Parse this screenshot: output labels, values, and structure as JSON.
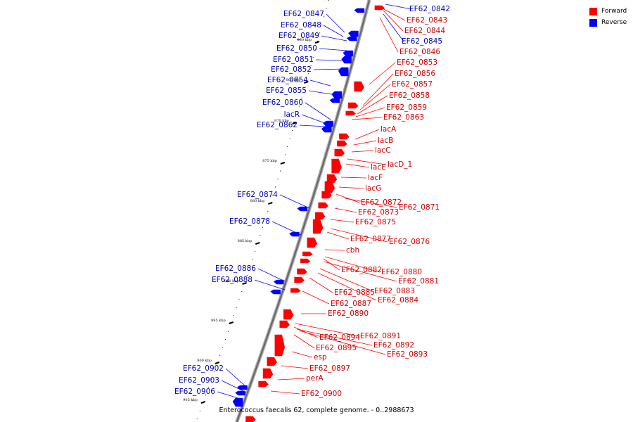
{
  "caption": "Enterococcus faecalis 62, complete genome. - 0..2988673",
  "legend": [
    {
      "label": "Forward",
      "color": "#ff0000"
    },
    {
      "label": "Reverse",
      "color": "#0000ff"
    }
  ],
  "colors": {
    "forward": "#ff0000",
    "reverse": "#0000ff",
    "backbone": "#888888"
  },
  "ticks": [
    "860 kbp",
    "865 kbp",
    "870 kbp",
    "875 kbp",
    "880 kbp",
    "885 kbp",
    "890 kbp",
    "895 kbp",
    "900 kbp",
    "905 kbp"
  ],
  "forward_labels": [
    "EF62_0843",
    "EF62_0844",
    "EF62_0846",
    "EF62_0853",
    "EF62_0856",
    "EF62_0857",
    "EF62_0858",
    "EF62_0859",
    "EF62_0863",
    "lacA",
    "lacB",
    "lacC",
    "lacD_1",
    "lacE",
    "lacF",
    "lacG",
    "EF62_0872",
    "EF62_0871",
    "EF62_0873",
    "EF62_0875",
    "EF62_0877",
    "EF62_0876",
    "cbh",
    "EF62_0882",
    "EF62_0880",
    "EF62_0881",
    "EF62_0883",
    "EF62_0885",
    "EF62_0884",
    "EF62_0887",
    "EF62_0890",
    "EF62_0891",
    "EF62_0894",
    "EF62_0892",
    "EF62_0895",
    "EF62_0893",
    "esp",
    "EF62_0897",
    "perA",
    "EF62_0900"
  ],
  "reverse_labels": [
    "EF62_0842",
    "EF62_0845",
    "EF62_0847",
    "EF62_0848",
    "EF62_0849",
    "EF62_0850",
    "EF62_0851",
    "EF62_0852",
    "EF62_0854",
    "EF62_0855",
    "EF62_0860",
    "lacR",
    "EF62_0862",
    "EF62_0874",
    "EF62_0878",
    "EF62_0886",
    "EF62_0888",
    "EF62_0902",
    "EF62_0903",
    "EF62_0906"
  ]
}
